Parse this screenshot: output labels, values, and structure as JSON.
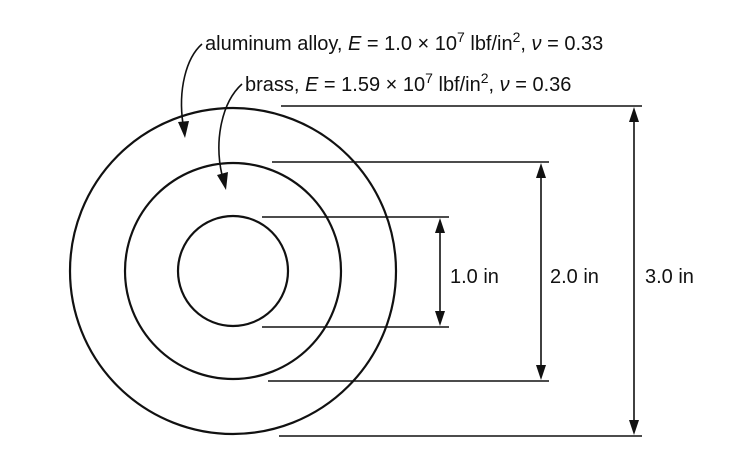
{
  "materials": {
    "outer": {
      "name": "aluminum alloy",
      "modulus_symbol": "E",
      "modulus_text": " = 1.0 × 10",
      "modulus_exp": "7",
      "unit_text": " lbf/in",
      "unit_exp": "2",
      "poisson_symbol": "ν",
      "poisson_text": " = 0.33"
    },
    "inner": {
      "name": "brass",
      "modulus_symbol": "E",
      "modulus_text": " = 1.59 × 10",
      "modulus_exp": "7",
      "unit_text": " lbf/in",
      "unit_exp": "2",
      "poisson_symbol": "ν",
      "poisson_text": " = 0.36"
    }
  },
  "dimensions": {
    "small": "1.0 in",
    "medium": "2.0 in",
    "large": "3.0 in"
  },
  "colors": {
    "ink": "#111111",
    "background": "#ffffff"
  }
}
